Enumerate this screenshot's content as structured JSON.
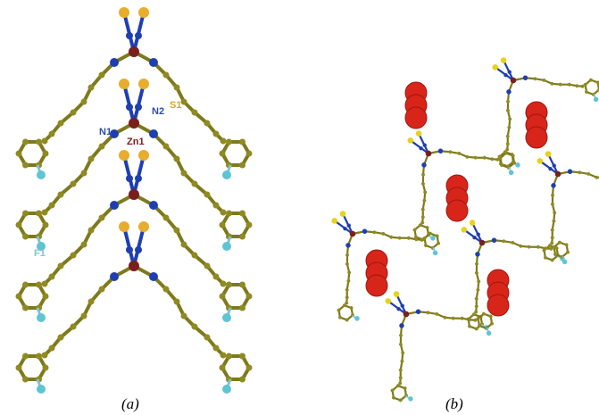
{
  "panel_a": {
    "caption": "(a)",
    "atom_labels": [
      {
        "text": "S1"
      },
      {
        "text": "N1"
      },
      {
        "text": "N2"
      },
      {
        "text": "Zn1"
      },
      {
        "text": "F1"
      }
    ]
  },
  "panel_b": {
    "caption": "(b)"
  }
}
